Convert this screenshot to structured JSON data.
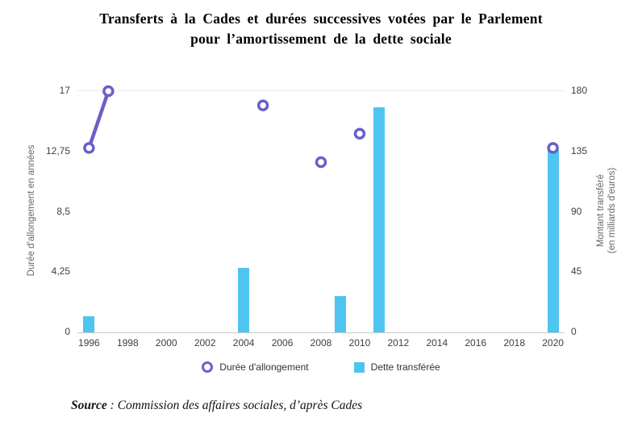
{
  "title": {
    "line1": "Transferts à la Cades et durées successives votées par le Parlement",
    "line2": "pour l’amortissement de la dette sociale"
  },
  "source": {
    "label": "Source",
    "text": " : Commission des affaires sociales, d’après Cades"
  },
  "chart_data": {
    "type": "bar",
    "subtype": "combo-bar-scatter",
    "title": "Transferts à la Cades et durées successives votées par le Parlement pour l’amortissement de la dette sociale",
    "x_axis": {
      "range": [
        1995.4,
        2020.6
      ],
      "ticks": [
        1996,
        1998,
        2000,
        2002,
        2004,
        2006,
        2008,
        2010,
        2012,
        2014,
        2016,
        2018,
        2020
      ]
    },
    "y_left": {
      "label": "Durée d'allongement en années",
      "range": [
        0,
        17
      ],
      "tick_values": [
        0,
        4.25,
        8.5,
        12.75,
        17
      ],
      "tick_labels": [
        "0",
        "4,25",
        "8,5",
        "12,75",
        "17"
      ]
    },
    "y_right": {
      "label_line1": "Montant transféré",
      "label_line2": "(en milliards d'euros)",
      "range": [
        0,
        180
      ],
      "tick_values": [
        0,
        45,
        90,
        135,
        180
      ],
      "tick_labels": [
        "0",
        "45",
        "90",
        "135",
        "180"
      ]
    },
    "series": [
      {
        "name": "Durée d'allongement",
        "type": "scatter",
        "axis": "left",
        "marker": "open-circle",
        "color": "#6A60C8",
        "connected_indices": [
          0,
          1
        ],
        "points": [
          {
            "year": 1996,
            "value": 13
          },
          {
            "year": 1997,
            "value": 17
          },
          {
            "year": 2005,
            "value": 16
          },
          {
            "year": 2008,
            "value": 12
          },
          {
            "year": 2010,
            "value": 14
          },
          {
            "year": 2020,
            "value": 13
          }
        ]
      },
      {
        "name": "Dette transférée",
        "type": "bar",
        "axis": "right",
        "color": "#4EC5F0",
        "points": [
          {
            "year": 1996,
            "value": 12
          },
          {
            "year": 2004,
            "value": 48
          },
          {
            "year": 2009,
            "value": 27
          },
          {
            "year": 2011,
            "value": 168
          },
          {
            "year": 2020,
            "value": 136
          }
        ]
      }
    ],
    "legend_position": "bottom",
    "grid": "top-line-only"
  }
}
